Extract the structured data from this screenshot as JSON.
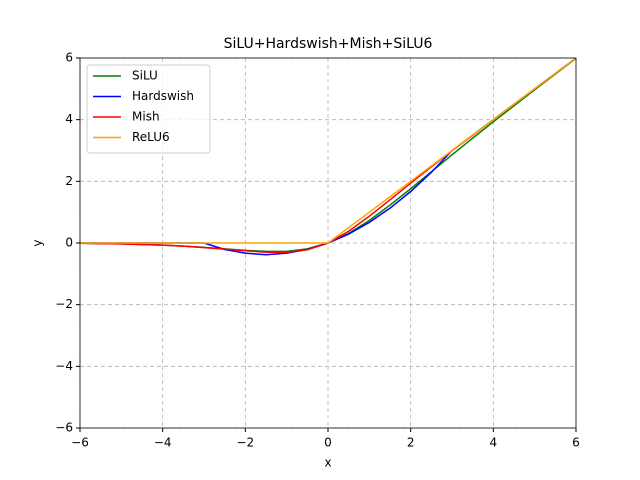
{
  "chart_data": {
    "type": "line",
    "title": "SiLU+Hardswish+Mish+SiLU6",
    "x_label": "x",
    "y_label": "y",
    "x": [
      -6,
      -5.5,
      -5,
      -4.5,
      -4,
      -3.5,
      -3,
      -2.5,
      -2,
      -1.5,
      -1,
      -0.5,
      0,
      0.5,
      1,
      1.5,
      2,
      2.5,
      3,
      3.5,
      4,
      4.5,
      5,
      5.5,
      6
    ],
    "series": [
      {
        "name": "SiLU",
        "color": "#008000",
        "values": [
          -0.01,
          -0.02,
          -0.03,
          -0.05,
          -0.07,
          -0.1,
          -0.14,
          -0.19,
          -0.24,
          -0.27,
          -0.27,
          -0.19,
          0,
          0.31,
          0.73,
          1.23,
          1.76,
          2.31,
          2.86,
          3.4,
          3.93,
          4.45,
          4.97,
          5.48,
          5.99
        ]
      },
      {
        "name": "Hardswish",
        "color": "#0000ff",
        "values": [
          0,
          0,
          0,
          0,
          0,
          0,
          0,
          -0.21,
          -0.33,
          -0.38,
          -0.33,
          -0.21,
          0,
          0.29,
          0.67,
          1.13,
          1.67,
          2.29,
          3,
          3.5,
          4,
          4.5,
          5,
          5.5,
          6
        ]
      },
      {
        "name": "Mish",
        "color": "#ff0000",
        "values": [
          -0.01,
          -0.02,
          -0.03,
          -0.05,
          -0.07,
          -0.1,
          -0.15,
          -0.2,
          -0.25,
          -0.3,
          -0.3,
          -0.22,
          0,
          0.38,
          0.87,
          1.4,
          1.94,
          2.47,
          2.99,
          3.49,
          4.0,
          4.5,
          5.0,
          5.5,
          6.0
        ]
      },
      {
        "name": "ReLU6",
        "color": "#ffa500",
        "values": [
          0,
          0,
          0,
          0,
          0,
          0,
          0,
          0,
          0,
          0,
          0,
          0,
          0,
          0.5,
          1,
          1.5,
          2,
          2.5,
          3,
          3.5,
          4,
          4.5,
          5,
          5.5,
          6
        ]
      }
    ],
    "xlim": [
      -6,
      6
    ],
    "ylim": [
      -6,
      6
    ],
    "xticks": [
      {
        "value": -6,
        "label": "−6"
      },
      {
        "value": -4,
        "label": "−4"
      },
      {
        "value": -2,
        "label": "−2"
      },
      0,
      2,
      4,
      6
    ],
    "yticks": [
      {
        "value": -6,
        "label": "−6"
      },
      {
        "value": -4,
        "label": "−4"
      },
      {
        "value": -2,
        "label": "−2"
      },
      0,
      2,
      4,
      6
    ],
    "grid": true,
    "legend": "upper-left"
  }
}
